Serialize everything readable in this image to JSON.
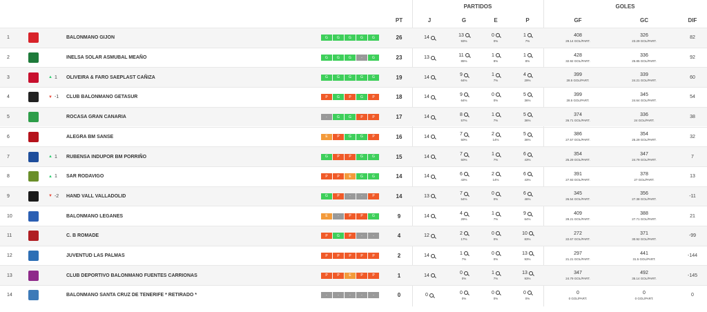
{
  "groups": {
    "partidos": "PARTIDOS",
    "goles": "GOLES"
  },
  "headers": {
    "pt": "PT",
    "j": "J",
    "g": "G",
    "e": "E",
    "p": "P",
    "gf": "GF",
    "gc": "GC",
    "dif": "DIF"
  },
  "colors": {
    "win": "#3ecf5a",
    "loss": "#f05a28",
    "draw": "#f39a3a",
    "none": "#999999",
    "trend_up": "#2ecc71",
    "trend_down": "#e74c3c"
  },
  "rows": [
    {
      "rank": "1",
      "logo_color": "#d8232a",
      "trend": "",
      "trend_dir": "",
      "name": "BALONMANO GIJON",
      "form": [
        "G",
        "G",
        "G",
        "G",
        "G"
      ],
      "pt": "26",
      "j": "14",
      "g": "13",
      "g_pct": "93%",
      "e": "0",
      "e_pct": "0%",
      "p": "1",
      "p_pct": "7%",
      "gf": "408",
      "gf_avg": "29.14 GOL/PART.",
      "gc": "326",
      "gc_avg": "23.29 GOL/PART.",
      "dif": "82"
    },
    {
      "rank": "2",
      "logo_color": "#1e7a3a",
      "trend": "",
      "trend_dir": "",
      "name": "INELSA SOLAR ASMUBAL MEAÑO",
      "form": [
        "G",
        "G",
        "G",
        "-",
        "G"
      ],
      "pt": "23",
      "j": "13",
      "g": "11",
      "g_pct": "85%",
      "e": "1",
      "e_pct": "8%",
      "p": "1",
      "p_pct": "8%",
      "gf": "428",
      "gf_avg": "32.92 GOL/PART.",
      "gc": "336",
      "gc_avg": "25.85 GOL/PART.",
      "dif": "92"
    },
    {
      "rank": "3",
      "logo_color": "#c8102e",
      "trend": "1",
      "trend_dir": "up",
      "name": "OLIVEIRA & FARO SAEPLAST CAÑIZA",
      "form": [
        "G",
        "G",
        "G",
        "G",
        "G"
      ],
      "pt": "19",
      "j": "14",
      "g": "9",
      "g_pct": "64%",
      "e": "1",
      "e_pct": "7%",
      "p": "4",
      "p_pct": "29%",
      "gf": "399",
      "gf_avg": "28.5 GOL/PART.",
      "gc": "339",
      "gc_avg": "24.21 GOL/PART.",
      "dif": "60"
    },
    {
      "rank": "4",
      "logo_color": "#222222",
      "trend": "-1",
      "trend_dir": "down",
      "name": "CLUB BALONMANO GETASUR",
      "form": [
        "P",
        "G",
        "P",
        "G",
        "P"
      ],
      "pt": "18",
      "j": "14",
      "g": "9",
      "g_pct": "64%",
      "e": "0",
      "e_pct": "0%",
      "p": "5",
      "p_pct": "36%",
      "gf": "399",
      "gf_avg": "28.5 GOL/PART.",
      "gc": "345",
      "gc_avg": "24.64 GOL/PART.",
      "dif": "54"
    },
    {
      "rank": "5",
      "logo_color": "#2e9e4a",
      "trend": "",
      "trend_dir": "",
      "name": "ROCASA GRAN CANARIA",
      "form": [
        "-",
        "G",
        "G",
        "P",
        "P"
      ],
      "pt": "17",
      "j": "14",
      "g": "8",
      "g_pct": "57%",
      "e": "1",
      "e_pct": "7%",
      "p": "5",
      "p_pct": "36%",
      "gf": "374",
      "gf_avg": "26.71 GOL/PART.",
      "gc": "336",
      "gc_avg": "24 GOL/PART.",
      "dif": "38"
    },
    {
      "rank": "6",
      "logo_color": "#b5121b",
      "trend": "",
      "trend_dir": "",
      "name": "ALEGRA BM SANSE",
      "form": [
        "E",
        "P",
        "G",
        "G",
        "P"
      ],
      "pt": "16",
      "j": "14",
      "g": "7",
      "g_pct": "50%",
      "e": "2",
      "e_pct": "14%",
      "p": "5",
      "p_pct": "36%",
      "gf": "386",
      "gf_avg": "27.57 GOL/PART.",
      "gc": "354",
      "gc_avg": "25.29 GOL/PART.",
      "dif": "32"
    },
    {
      "rank": "7",
      "logo_color": "#1f4e9c",
      "trend": "1",
      "trend_dir": "up",
      "name": "RUBENSA INDUPOR BM PORRIÑO",
      "form": [
        "G",
        "P",
        "P",
        "G",
        "G"
      ],
      "pt": "15",
      "j": "14",
      "g": "7",
      "g_pct": "50%",
      "e": "1",
      "e_pct": "7%",
      "p": "6",
      "p_pct": "43%",
      "gf": "354",
      "gf_avg": "25.29 GOL/PART.",
      "gc": "347",
      "gc_avg": "24.79 GOL/PART.",
      "dif": "7"
    },
    {
      "rank": "8",
      "logo_color": "#6a8f2a",
      "trend": "1",
      "trend_dir": "up",
      "name": "SAR RODAVIGO",
      "form": [
        "P",
        "P",
        "E",
        "G",
        "G"
      ],
      "pt": "14",
      "j": "14",
      "g": "6",
      "g_pct": "43%",
      "e": "2",
      "e_pct": "14%",
      "p": "6",
      "p_pct": "43%",
      "gf": "391",
      "gf_avg": "27.93 GOL/PART.",
      "gc": "378",
      "gc_avg": "27 GOL/PART.",
      "dif": "13"
    },
    {
      "rank": "9",
      "logo_color": "#1a1a1a",
      "trend": "-2",
      "trend_dir": "down",
      "name": "HAND VALL VALLADOLID",
      "form": [
        "G",
        "P",
        "-",
        "-",
        "P"
      ],
      "pt": "14",
      "j": "13",
      "g": "7",
      "g_pct": "54%",
      "e": "0",
      "e_pct": "0%",
      "p": "6",
      "p_pct": "46%",
      "gf": "345",
      "gf_avg": "26.54 GOL/PART.",
      "gc": "356",
      "gc_avg": "27.38 GOL/PART.",
      "dif": "-11"
    },
    {
      "rank": "10",
      "logo_color": "#2b5fb3",
      "trend": "",
      "trend_dir": "",
      "name": "BALONMANO LEGANES",
      "form": [
        "E",
        "-",
        "P",
        "P",
        "G"
      ],
      "pt": "9",
      "j": "14",
      "g": "4",
      "g_pct": "29%",
      "e": "1",
      "e_pct": "7%",
      "p": "9",
      "p_pct": "64%",
      "gf": "409",
      "gf_avg": "29.21 GOL/PART.",
      "gc": "388",
      "gc_avg": "27.71 GOL/PART.",
      "dif": "21"
    },
    {
      "rank": "11",
      "logo_color": "#b01e23",
      "trend": "",
      "trend_dir": "",
      "name": "C. B ROMADE",
      "form": [
        "P",
        "G",
        "P",
        "-",
        "-"
      ],
      "pt": "4",
      "j": "12",
      "g": "2",
      "g_pct": "17%",
      "e": "0",
      "e_pct": "0%",
      "p": "10",
      "p_pct": "83%",
      "gf": "272",
      "gf_avg": "22.67 GOL/PART.",
      "gc": "371",
      "gc_avg": "30.92 GOL/PART.",
      "dif": "-99"
    },
    {
      "rank": "12",
      "logo_color": "#2d6fb5",
      "trend": "",
      "trend_dir": "",
      "name": "JUVENTUD LAS PALMAS",
      "form": [
        "P",
        "P",
        "P",
        "P",
        "P"
      ],
      "pt": "2",
      "j": "14",
      "g": "1",
      "g_pct": "7%",
      "e": "0",
      "e_pct": "0%",
      "p": "13",
      "p_pct": "93%",
      "gf": "297",
      "gf_avg": "21.21 GOL/PART.",
      "gc": "441",
      "gc_avg": "31.5 GOL/PART.",
      "dif": "-144"
    },
    {
      "rank": "13",
      "logo_color": "#8e2a8a",
      "trend": "",
      "trend_dir": "",
      "name": "CLUB DEPORTIVO BALONMANO FUENTES CARRIONAS",
      "form": [
        "P",
        "P",
        "E",
        "P",
        "P"
      ],
      "pt": "1",
      "j": "14",
      "g": "0",
      "g_pct": "0%",
      "e": "1",
      "e_pct": "7%",
      "p": "13",
      "p_pct": "93%",
      "gf": "347",
      "gf_avg": "24.79 GOL/PART.",
      "gc": "492",
      "gc_avg": "35.14 GOL/PART.",
      "dif": "-145"
    },
    {
      "rank": "14",
      "logo_color": "#3d7ab8",
      "trend": "",
      "trend_dir": "",
      "name": "BALONMANO SANTA CRUZ DE TENERIFE * RETIRADO *",
      "form": [
        "-",
        "-",
        "-",
        "-",
        "-"
      ],
      "pt": "0",
      "j": "0",
      "g": "0",
      "g_pct": "0%",
      "e": "0",
      "e_pct": "0%",
      "p": "0",
      "p_pct": "0%",
      "gf": "0",
      "gf_avg": "0 GOL/PART.",
      "gc": "0",
      "gc_avg": "0 GOL/PART.",
      "dif": "0"
    }
  ]
}
